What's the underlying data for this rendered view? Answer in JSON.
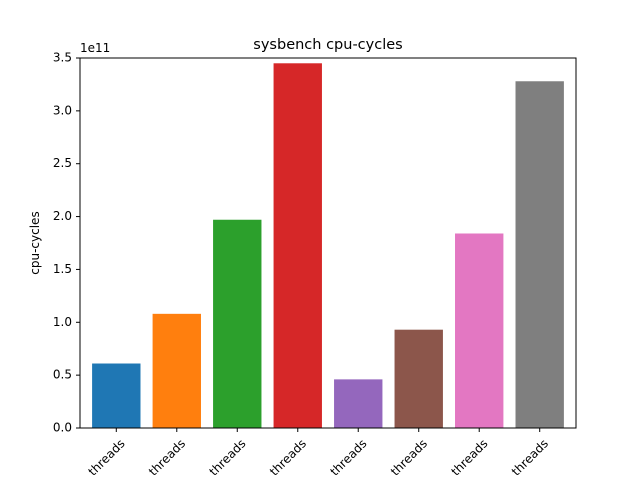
{
  "chart_data": {
    "type": "bar",
    "title": "sysbench cpu-cycles",
    "xlabel": "",
    "ylabel": "cpu-cycles",
    "offset_label": "1e11",
    "categories": [
      "threads",
      "threads",
      "threads",
      "threads",
      "threads",
      "threads",
      "threads",
      "threads"
    ],
    "values": [
      61000000000,
      108000000000,
      197000000000,
      345000000000,
      46000000000,
      93000000000,
      184000000000,
      328000000000
    ],
    "colors": [
      "#1f77b4",
      "#ff7f0e",
      "#2ca02c",
      "#d62728",
      "#9467bd",
      "#8c564b",
      "#e377c2",
      "#7f7f7f"
    ],
    "ylim": [
      0,
      350000000000
    ],
    "yticks": [
      0,
      50000000000,
      100000000000,
      150000000000,
      200000000000,
      250000000000,
      300000000000,
      350000000000
    ],
    "ytick_labels": [
      "0.0",
      "0.5",
      "1.0",
      "1.5",
      "2.0",
      "2.5",
      "3.0",
      "3.5"
    ],
    "grid": false,
    "legend": "none"
  }
}
